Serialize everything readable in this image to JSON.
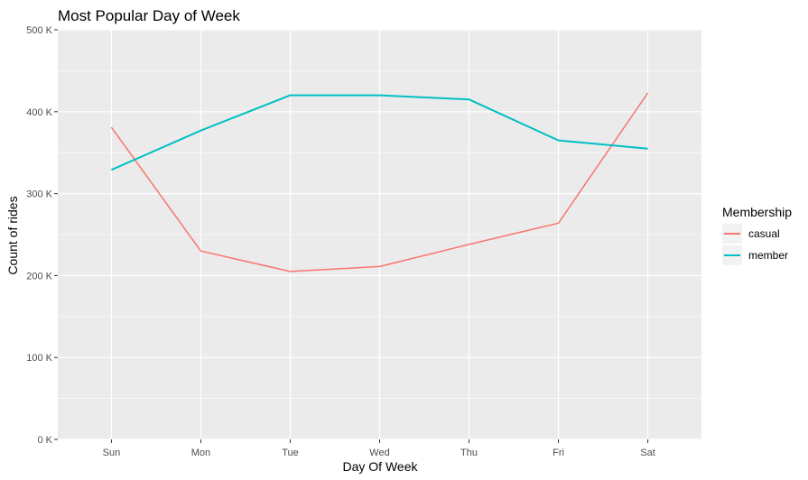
{
  "chart_data": {
    "type": "line",
    "title": "Most Popular Day of Week",
    "xlabel": "Day Of Week",
    "ylabel": "Count of rides",
    "categories": [
      "Sun",
      "Mon",
      "Tue",
      "Wed",
      "Thu",
      "Fri",
      "Sat"
    ],
    "ylim": [
      0,
      500000
    ],
    "yticks": [
      0,
      100000,
      200000,
      300000,
      400000,
      500000
    ],
    "ytick_labels": [
      "0 K",
      "100 K",
      "200 K",
      "300 K",
      "400 K",
      "500 K"
    ],
    "grid": true,
    "legend": {
      "title": "Membership",
      "placement": "right"
    },
    "series": [
      {
        "name": "casual",
        "color": "#F8766D",
        "values": [
          381000,
          230000,
          205000,
          211000,
          238000,
          264000,
          423000
        ]
      },
      {
        "name": "member",
        "color": "#00BFC4",
        "values": [
          329000,
          377000,
          420000,
          420000,
          415000,
          365000,
          355000
        ]
      }
    ],
    "panel_background": "#EBEBEB",
    "grid_color": "#FFFFFF"
  }
}
